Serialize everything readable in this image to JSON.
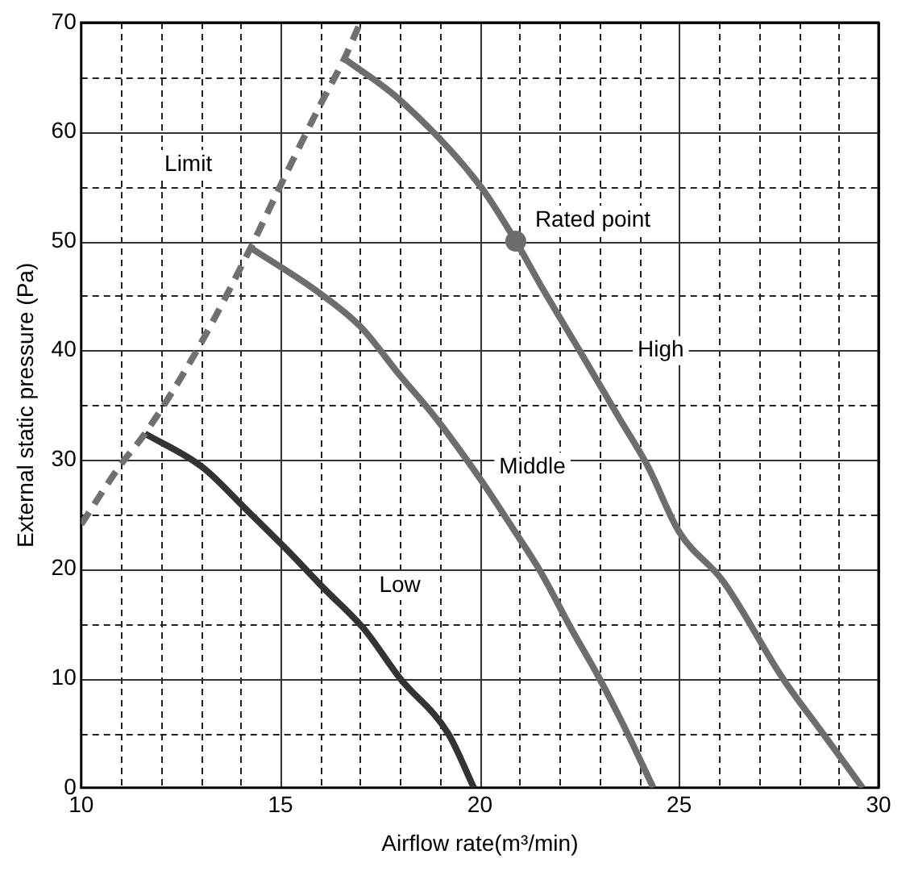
{
  "chart_data": {
    "type": "line",
    "xlabel": "Airflow rate(m³/min)",
    "ylabel": "External static pressure (Pa)",
    "xlim": [
      10,
      30
    ],
    "ylim": [
      0,
      70
    ],
    "xticks": [
      10,
      {
        "value": 11,
        "label": null
      },
      {
        "value": 12,
        "label": null
      },
      {
        "value": 13,
        "label": null
      },
      {
        "value": 14,
        "label": null
      },
      15,
      {
        "value": 16,
        "label": null
      },
      {
        "value": 17,
        "label": null
      },
      {
        "value": 18,
        "label": null
      },
      {
        "value": 19,
        "label": null
      },
      20,
      {
        "value": 21,
        "label": null
      },
      {
        "value": 22,
        "label": null
      },
      {
        "value": 23,
        "label": null
      },
      {
        "value": 24,
        "label": null
      },
      25,
      {
        "value": 26,
        "label": null
      },
      {
        "value": 27,
        "label": null
      },
      {
        "value": 28,
        "label": null
      },
      {
        "value": 29,
        "label": null
      },
      30
    ],
    "yticks": [
      0,
      {
        "value": 5,
        "label": null
      },
      10,
      {
        "value": 15,
        "label": null
      },
      20,
      {
        "value": 25,
        "label": null
      },
      30,
      {
        "value": 35,
        "label": null
      },
      40,
      {
        "value": 45,
        "label": null
      },
      50,
      {
        "value": 55,
        "label": null
      },
      60,
      {
        "value": 65,
        "label": null
      },
      70
    ],
    "grid": true,
    "legend": false,
    "marker": "none",
    "series": [
      {
        "name": "Limit",
        "type": "line",
        "line_style": "dashed",
        "color": "#707070",
        "x": [
          10,
          11,
          11.6,
          12.9,
          14.25,
          15,
          16,
          16.6,
          17
        ],
        "values": [
          24.1,
          29.6,
          32.4,
          40,
          49.4,
          55.1,
          62.5,
          66.7,
          70
        ]
      },
      {
        "name": "High",
        "type": "line",
        "color": "#6d6d6d",
        "x": [
          16.6,
          18,
          20,
          20.9,
          21.6,
          22.5,
          23.5,
          24.2,
          25,
          26.1,
          27.6,
          28.6,
          29.6
        ],
        "values": [
          66.7,
          62.9,
          55.1,
          50,
          45.5,
          40,
          33.8,
          29.5,
          23.4,
          18.9,
          10,
          5,
          0
        ]
      },
      {
        "name": "Middle",
        "type": "line",
        "color": "#6d6d6d",
        "x": [
          14.25,
          16,
          17,
          18,
          18.9,
          20,
          20.85,
          21.5,
          22.3,
          23,
          23.7,
          24.35
        ],
        "values": [
          49.4,
          45.2,
          42.2,
          37.7,
          33.8,
          28.3,
          23.6,
          19.9,
          14.5,
          10,
          5,
          0
        ]
      },
      {
        "name": "Low",
        "type": "line",
        "color": "#333333",
        "x": [
          11.6,
          13.05,
          14.1,
          15.1,
          16.1,
          17.1,
          18,
          19.2,
          19.85
        ],
        "values": [
          32.4,
          29.3,
          25.6,
          22,
          18.2,
          14.5,
          10,
          5,
          0
        ]
      },
      {
        "name": "Rated point",
        "type": "scatter",
        "marker": "circle",
        "color": "#6d6d6d",
        "x": [
          20.9
        ],
        "values": [
          50
        ]
      }
    ]
  }
}
